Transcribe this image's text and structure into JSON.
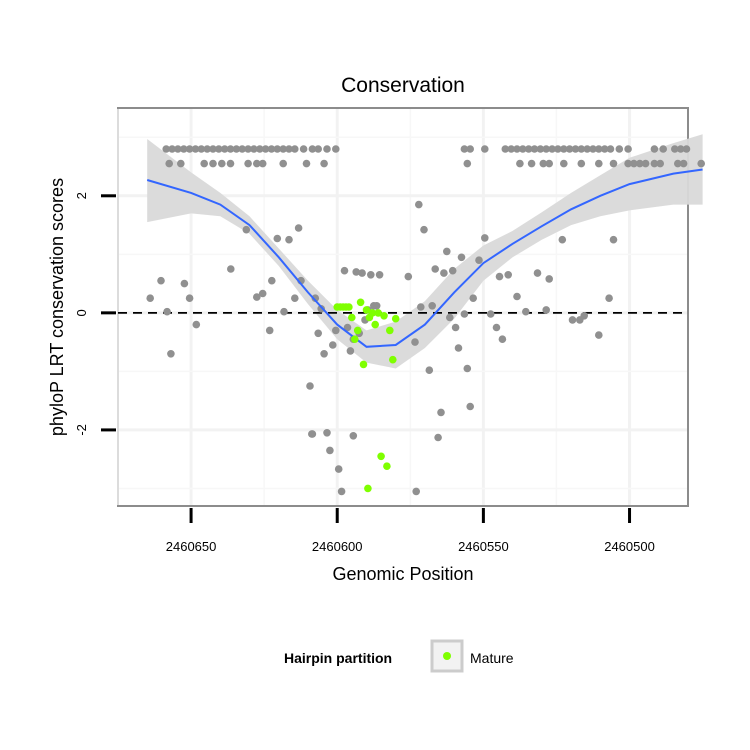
{
  "chart_data": {
    "type": "scatter",
    "title": "Conservation",
    "xlabel": "Genomic Position",
    "ylabel": "phyloP LRT conservation scores",
    "x_reversed": true,
    "xlim": [
      2460675,
      2460480
    ],
    "ylim": [
      -3.3,
      3.5
    ],
    "x_ticks": [
      2460650,
      2460600,
      2460550,
      2460500
    ],
    "x_tick_labels": [
      "2460650",
      "2460600",
      "2460550",
      "2460500"
    ],
    "y_ticks": [
      -2,
      0,
      2
    ],
    "y_tick_labels": [
      "-2",
      "0",
      "2"
    ],
    "reference_line": {
      "y": 0,
      "style": "dashed"
    },
    "grid": true,
    "legend": {
      "title": "Hairpin partition",
      "position": "bottom",
      "entries": [
        {
          "label": "Mature",
          "color": "#7fff00"
        }
      ]
    },
    "colors": {
      "other": "#909090",
      "mature": "#7fff00",
      "smooth_line": "#3366ff",
      "ribbon": "#d9d9d9"
    },
    "series": [
      {
        "name": "Other",
        "points": [
          {
            "x": 2460658.5,
            "y": 2.8
          },
          {
            "x": 2460656.5,
            "y": 2.8
          },
          {
            "x": 2460654.5,
            "y": 2.8
          },
          {
            "x": 2460652.5,
            "y": 2.8
          },
          {
            "x": 2460650.5,
            "y": 2.8
          },
          {
            "x": 2460648.5,
            "y": 2.8
          },
          {
            "x": 2460646.5,
            "y": 2.8
          },
          {
            "x": 2460644.5,
            "y": 2.8
          },
          {
            "x": 2460642.5,
            "y": 2.8
          },
          {
            "x": 2460640.5,
            "y": 2.8
          },
          {
            "x": 2460638.5,
            "y": 2.8
          },
          {
            "x": 2460636.5,
            "y": 2.8
          },
          {
            "x": 2460634.5,
            "y": 2.8
          },
          {
            "x": 2460632.5,
            "y": 2.8
          },
          {
            "x": 2460630.5,
            "y": 2.8
          },
          {
            "x": 2460628.5,
            "y": 2.8
          },
          {
            "x": 2460626.5,
            "y": 2.8
          },
          {
            "x": 2460624.5,
            "y": 2.8
          },
          {
            "x": 2460622.5,
            "y": 2.8
          },
          {
            "x": 2460620.5,
            "y": 2.8
          },
          {
            "x": 2460618.5,
            "y": 2.8
          },
          {
            "x": 2460616.5,
            "y": 2.8
          },
          {
            "x": 2460614.5,
            "y": 2.8
          },
          {
            "x": 2460611.5,
            "y": 2.8
          },
          {
            "x": 2460608.5,
            "y": 2.8
          },
          {
            "x": 2460606.5,
            "y": 2.8
          },
          {
            "x": 2460603.5,
            "y": 2.8
          },
          {
            "x": 2460600.5,
            "y": 2.8
          },
          {
            "x": 2460657.5,
            "y": 2.55
          },
          {
            "x": 2460653.5,
            "y": 2.55
          },
          {
            "x": 2460645.5,
            "y": 2.55
          },
          {
            "x": 2460642.5,
            "y": 2.55
          },
          {
            "x": 2460639.5,
            "y": 2.55
          },
          {
            "x": 2460636.5,
            "y": 2.55
          },
          {
            "x": 2460630.5,
            "y": 2.55
          },
          {
            "x": 2460627.5,
            "y": 2.55
          },
          {
            "x": 2460625.5,
            "y": 2.55
          },
          {
            "x": 2460618.5,
            "y": 2.55
          },
          {
            "x": 2460610.5,
            "y": 2.55
          },
          {
            "x": 2460604.5,
            "y": 2.55
          },
          {
            "x": 2460556.5,
            "y": 2.8
          },
          {
            "x": 2460554.5,
            "y": 2.8
          },
          {
            "x": 2460549.5,
            "y": 2.8
          },
          {
            "x": 2460542.5,
            "y": 2.8
          },
          {
            "x": 2460540.5,
            "y": 2.8
          },
          {
            "x": 2460538.5,
            "y": 2.8
          },
          {
            "x": 2460536.5,
            "y": 2.8
          },
          {
            "x": 2460534.5,
            "y": 2.8
          },
          {
            "x": 2460532.5,
            "y": 2.8
          },
          {
            "x": 2460530.5,
            "y": 2.8
          },
          {
            "x": 2460528.5,
            "y": 2.8
          },
          {
            "x": 2460526.5,
            "y": 2.8
          },
          {
            "x": 2460524.5,
            "y": 2.8
          },
          {
            "x": 2460522.5,
            "y": 2.8
          },
          {
            "x": 2460520.5,
            "y": 2.8
          },
          {
            "x": 2460518.5,
            "y": 2.8
          },
          {
            "x": 2460516.5,
            "y": 2.8
          },
          {
            "x": 2460514.5,
            "y": 2.8
          },
          {
            "x": 2460512.5,
            "y": 2.8
          },
          {
            "x": 2460510.5,
            "y": 2.8
          },
          {
            "x": 2460508.5,
            "y": 2.8
          },
          {
            "x": 2460506.5,
            "y": 2.8
          },
          {
            "x": 2460503.5,
            "y": 2.8
          },
          {
            "x": 2460500.5,
            "y": 2.8
          },
          {
            "x": 2460491.5,
            "y": 2.8
          },
          {
            "x": 2460488.5,
            "y": 2.8
          },
          {
            "x": 2460484.5,
            "y": 2.8
          },
          {
            "x": 2460482.5,
            "y": 2.8
          },
          {
            "x": 2460480.5,
            "y": 2.8
          },
          {
            "x": 2460555.5,
            "y": 2.55
          },
          {
            "x": 2460537.5,
            "y": 2.55
          },
          {
            "x": 2460533.5,
            "y": 2.55
          },
          {
            "x": 2460529.5,
            "y": 2.55
          },
          {
            "x": 2460527.5,
            "y": 2.55
          },
          {
            "x": 2460522.5,
            "y": 2.55
          },
          {
            "x": 2460516.5,
            "y": 2.55
          },
          {
            "x": 2460510.5,
            "y": 2.55
          },
          {
            "x": 2460505.5,
            "y": 2.55
          },
          {
            "x": 2460500.5,
            "y": 2.55
          },
          {
            "x": 2460498.5,
            "y": 2.55
          },
          {
            "x": 2460496.5,
            "y": 2.55
          },
          {
            "x": 2460494.5,
            "y": 2.55
          },
          {
            "x": 2460491.5,
            "y": 2.55
          },
          {
            "x": 2460489.5,
            "y": 2.55
          },
          {
            "x": 2460483.5,
            "y": 2.55
          },
          {
            "x": 2460481.5,
            "y": 2.55
          },
          {
            "x": 2460475.5,
            "y": 2.55
          },
          {
            "x": 2460664.0,
            "y": 0.25
          },
          {
            "x": 2460660.3,
            "y": 0.55
          },
          {
            "x": 2460658.2,
            "y": 0.02
          },
          {
            "x": 2460656.9,
            "y": -0.7
          },
          {
            "x": 2460652.3,
            "y": 0.5
          },
          {
            "x": 2460650.5,
            "y": 0.25
          },
          {
            "x": 2460648.2,
            "y": -0.2
          },
          {
            "x": 2460636.4,
            "y": 0.75
          },
          {
            "x": 2460631.1,
            "y": 1.42
          },
          {
            "x": 2460627.5,
            "y": 0.27
          },
          {
            "x": 2460625.5,
            "y": 0.33
          },
          {
            "x": 2460623.1,
            "y": -0.3
          },
          {
            "x": 2460622.4,
            "y": 0.55
          },
          {
            "x": 2460620.5,
            "y": 1.27
          },
          {
            "x": 2460618.2,
            "y": 0.02
          },
          {
            "x": 2460616.5,
            "y": 1.25
          },
          {
            "x": 2460614.5,
            "y": 0.25
          },
          {
            "x": 2460613.2,
            "y": 1.45
          },
          {
            "x": 2460612.4,
            "y": 0.55
          },
          {
            "x": 2460609.3,
            "y": -1.25
          },
          {
            "x": 2460608.5,
            "y": -2.07
          },
          {
            "x": 2460607.5,
            "y": 0.25
          },
          {
            "x": 2460606.5,
            "y": -0.35
          },
          {
            "x": 2460605.5,
            "y": 0.07
          },
          {
            "x": 2460604.5,
            "y": -0.7
          },
          {
            "x": 2460603.5,
            "y": -2.05
          },
          {
            "x": 2460602.5,
            "y": -2.35
          },
          {
            "x": 2460601.5,
            "y": -0.55
          },
          {
            "x": 2460600.5,
            "y": -0.3
          },
          {
            "x": 2460599.5,
            "y": -2.67
          },
          {
            "x": 2460598.5,
            "y": -3.05
          },
          {
            "x": 2460597.5,
            "y": 0.72
          },
          {
            "x": 2460596.5,
            "y": -0.25
          },
          {
            "x": 2460595.5,
            "y": -0.65
          },
          {
            "x": 2460594.5,
            "y": -0.45
          },
          {
            "x": 2460593.5,
            "y": 0.7
          },
          {
            "x": 2460592.5,
            "y": -0.35
          },
          {
            "x": 2460591.5,
            "y": 0.68
          },
          {
            "x": 2460590.5,
            "y": -0.12
          },
          {
            "x": 2460589.5,
            "y": 0.05
          },
          {
            "x": 2460588.5,
            "y": 0.65
          },
          {
            "x": 2460587.5,
            "y": 0.12
          },
          {
            "x": 2460586.5,
            "y": 0.12
          },
          {
            "x": 2460585.5,
            "y": 0.65
          },
          {
            "x": 2460575.7,
            "y": 0.62
          },
          {
            "x": 2460573.4,
            "y": -0.5
          },
          {
            "x": 2460572.1,
            "y": 1.85
          },
          {
            "x": 2460571.4,
            "y": 0.1
          },
          {
            "x": 2460570.3,
            "y": 1.42
          },
          {
            "x": 2460568.5,
            "y": -0.98
          },
          {
            "x": 2460567.5,
            "y": 0.12
          },
          {
            "x": 2460566.5,
            "y": 0.75
          },
          {
            "x": 2460565.5,
            "y": -2.13
          },
          {
            "x": 2460564.5,
            "y": -1.7
          },
          {
            "x": 2460563.5,
            "y": 0.68
          },
          {
            "x": 2460562.5,
            "y": 1.05
          },
          {
            "x": 2460561.5,
            "y": -0.08
          },
          {
            "x": 2460560.5,
            "y": 0.72
          },
          {
            "x": 2460559.5,
            "y": -0.25
          },
          {
            "x": 2460558.5,
            "y": -0.6
          },
          {
            "x": 2460557.5,
            "y": 0.95
          },
          {
            "x": 2460556.5,
            "y": -0.02
          },
          {
            "x": 2460555.5,
            "y": -0.95
          },
          {
            "x": 2460554.5,
            "y": -1.6
          },
          {
            "x": 2460553.5,
            "y": 0.25
          },
          {
            "x": 2460551.5,
            "y": 0.9
          },
          {
            "x": 2460549.5,
            "y": 1.28
          },
          {
            "x": 2460547.5,
            "y": -0.02
          },
          {
            "x": 2460545.5,
            "y": -0.25
          },
          {
            "x": 2460544.5,
            "y": 0.62
          },
          {
            "x": 2460543.5,
            "y": -0.45
          },
          {
            "x": 2460541.5,
            "y": 0.65
          },
          {
            "x": 2460538.5,
            "y": 0.28
          },
          {
            "x": 2460535.5,
            "y": 0.02
          },
          {
            "x": 2460531.5,
            "y": 0.68
          },
          {
            "x": 2460528.5,
            "y": 0.05
          },
          {
            "x": 2460527.5,
            "y": 0.58
          },
          {
            "x": 2460523.0,
            "y": 1.25
          },
          {
            "x": 2460519.5,
            "y": -0.12
          },
          {
            "x": 2460517.0,
            "y": -0.12
          },
          {
            "x": 2460515.5,
            "y": -0.05
          },
          {
            "x": 2460510.5,
            "y": -0.38
          },
          {
            "x": 2460507.0,
            "y": 0.25
          },
          {
            "x": 2460505.5,
            "y": 1.25
          },
          {
            "x": 2460573.0,
            "y": -3.05
          },
          {
            "x": 2460608.7,
            "y": -2.07
          },
          {
            "x": 2460594.5,
            "y": -2.1
          }
        ]
      },
      {
        "name": "Mature",
        "points": [
          {
            "x": 2460600.0,
            "y": 0.1
          },
          {
            "x": 2460599.0,
            "y": 0.1
          },
          {
            "x": 2460598.0,
            "y": 0.1
          },
          {
            "x": 2460597.0,
            "y": 0.1
          },
          {
            "x": 2460596.0,
            "y": 0.1
          },
          {
            "x": 2460595.0,
            "y": -0.08
          },
          {
            "x": 2460594.0,
            "y": -0.45
          },
          {
            "x": 2460593.0,
            "y": -0.3
          },
          {
            "x": 2460592.0,
            "y": 0.18
          },
          {
            "x": 2460591.0,
            "y": -0.88
          },
          {
            "x": 2460590.0,
            "y": 0.05
          },
          {
            "x": 2460589.0,
            "y": -0.08
          },
          {
            "x": 2460588.0,
            "y": 0.0
          },
          {
            "x": 2460587.0,
            "y": -0.2
          },
          {
            "x": 2460586.0,
            "y": 0.0
          },
          {
            "x": 2460585.0,
            "y": -2.45
          },
          {
            "x": 2460584.0,
            "y": -0.05
          },
          {
            "x": 2460583.0,
            "y": -2.62
          },
          {
            "x": 2460582.0,
            "y": -0.3
          },
          {
            "x": 2460581.0,
            "y": -0.8
          },
          {
            "x": 2460580.0,
            "y": -0.1
          },
          {
            "x": 2460589.5,
            "y": -3.0
          }
        ]
      }
    ],
    "smooth": {
      "x": [
        2460665,
        2460650,
        2460640,
        2460630,
        2460620,
        2460610,
        2460600,
        2460590,
        2460580,
        2460570,
        2460560,
        2460550,
        2460540,
        2460530,
        2460520,
        2460510,
        2460500,
        2460485,
        2460475
      ],
      "y": [
        2.27,
        2.05,
        1.85,
        1.5,
        0.95,
        0.35,
        -0.2,
        -0.58,
        -0.55,
        -0.2,
        0.35,
        0.85,
        1.18,
        1.48,
        1.77,
        2.0,
        2.2,
        2.38,
        2.45
      ],
      "lower": [
        1.55,
        1.7,
        1.65,
        1.35,
        0.8,
        0.15,
        -0.45,
        -0.85,
        -0.95,
        -0.6,
        -0.1,
        0.55,
        0.95,
        1.25,
        1.5,
        1.65,
        1.75,
        1.85,
        1.85
      ],
      "upper": [
        2.97,
        2.4,
        2.05,
        1.65,
        1.1,
        0.55,
        0.05,
        -0.3,
        -0.15,
        0.2,
        0.75,
        1.15,
        1.4,
        1.72,
        2.05,
        2.35,
        2.65,
        2.9,
        3.05
      ]
    }
  }
}
